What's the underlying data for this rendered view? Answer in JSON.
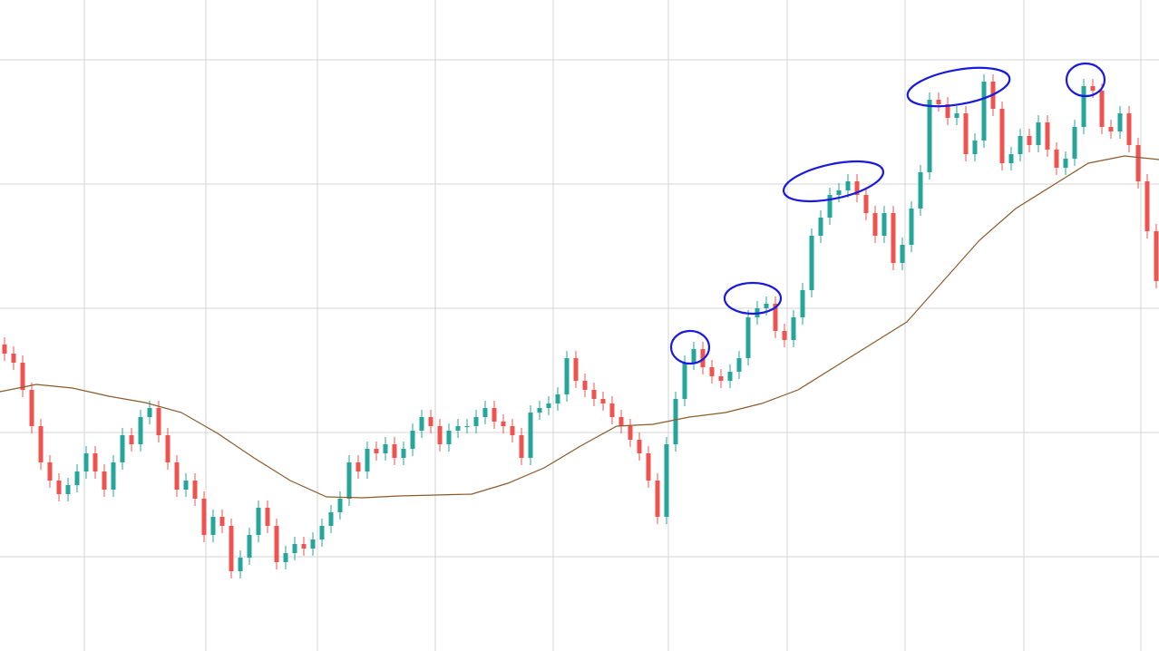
{
  "chart_data": {
    "type": "candlestick",
    "xlim": [
      0,
      127.8
    ],
    "ylim": [
      0,
      718
    ],
    "xticks": [
      9.3,
      22.7,
      35,
      48,
      61,
      73.7,
      86.8,
      99.8,
      112.9,
      125.8
    ],
    "yticks": [
      104,
      241,
      378,
      515,
      652
    ],
    "grid": true,
    "grid_color": "#d6d6d6",
    "series": [
      {
        "type": "candlestick",
        "up_color": "#26a69a",
        "down_color": "#ef5350",
        "open": [
          338,
          328,
          318,
          288,
          248,
          208,
          188,
          173,
          183,
          198,
          218,
          198,
          178,
          208,
          238,
          228,
          258,
          268,
          238,
          208,
          178,
          188,
          168,
          128,
          148,
          138,
          88,
          103,
          128,
          158,
          138,
          98,
          108,
          118,
          113,
          123,
          138,
          153,
          168,
          208,
          198,
          223,
          218,
          228,
          213,
          223,
          243,
          258,
          248,
          228,
          243,
          248,
          248,
          258,
          268,
          253,
          248,
          238,
          213,
          263,
          268,
          273,
          283,
          323,
          298,
          288,
          278,
          273,
          258,
          248,
          233,
          218,
          188,
          148,
          228,
          278,
          318,
          333,
          313,
          303,
          298,
          308,
          323,
          368,
          378,
          383,
          353,
          343,
          368,
          398,
          458,
          478,
          503,
          508,
          518,
          503,
          483,
          458,
          483,
          428,
          448,
          488,
          528,
          608,
          603,
          588,
          593,
          548,
          563,
          628,
          598,
          538,
          548,
          568,
          558,
          583,
          553,
          533,
          543,
          578,
          623,
          618,
          578,
          573,
          593,
          558,
          518,
          463
        ],
        "high": [
          346,
          336,
          326,
          296,
          256,
          216,
          196,
          191,
          206,
          226,
          226,
          206,
          216,
          246,
          246,
          266,
          276,
          276,
          246,
          216,
          196,
          196,
          176,
          156,
          156,
          146,
          111,
          136,
          166,
          166,
          146,
          116,
          126,
          126,
          131,
          146,
          161,
          176,
          216,
          216,
          231,
          231,
          236,
          236,
          231,
          251,
          266,
          266,
          256,
          251,
          256,
          256,
          266,
          276,
          276,
          261,
          256,
          246,
          271,
          276,
          281,
          291,
          331,
          331,
          306,
          296,
          286,
          281,
          266,
          256,
          241,
          226,
          196,
          236,
          286,
          326,
          341,
          341,
          321,
          311,
          316,
          331,
          376,
          386,
          391,
          391,
          361,
          376,
          406,
          466,
          486,
          511,
          516,
          526,
          526,
          511,
          491,
          491,
          491,
          456,
          496,
          536,
          616,
          616,
          611,
          601,
          601,
          571,
          636,
          636,
          606,
          556,
          576,
          576,
          591,
          591,
          561,
          551,
          586,
          631,
          631,
          626,
          586,
          601,
          601,
          566,
          526,
          471
        ],
        "low": [
          320,
          310,
          280,
          240,
          200,
          180,
          165,
          165,
          175,
          190,
          190,
          170,
          170,
          200,
          220,
          220,
          250,
          230,
          200,
          170,
          170,
          160,
          120,
          120,
          130,
          80,
          80,
          95,
          120,
          130,
          90,
          90,
          100,
          105,
          105,
          115,
          130,
          145,
          160,
          190,
          190,
          210,
          210,
          205,
          205,
          215,
          235,
          240,
          220,
          220,
          235,
          240,
          240,
          250,
          245,
          240,
          230,
          205,
          205,
          255,
          260,
          265,
          275,
          290,
          280,
          270,
          265,
          250,
          240,
          225,
          210,
          180,
          140,
          140,
          220,
          270,
          310,
          305,
          295,
          290,
          290,
          300,
          315,
          360,
          370,
          345,
          335,
          335,
          360,
          390,
          450,
          470,
          495,
          500,
          495,
          475,
          450,
          450,
          420,
          420,
          440,
          480,
          520,
          595,
          580,
          580,
          540,
          540,
          555,
          590,
          530,
          530,
          540,
          550,
          550,
          545,
          525,
          525,
          535,
          570,
          610,
          570,
          565,
          565,
          550,
          510,
          455,
          400
        ],
        "close": [
          328,
          318,
          288,
          248,
          208,
          188,
          173,
          183,
          198,
          218,
          198,
          178,
          208,
          238,
          228,
          258,
          268,
          238,
          208,
          178,
          188,
          168,
          128,
          148,
          138,
          88,
          103,
          128,
          158,
          138,
          98,
          108,
          118,
          113,
          123,
          138,
          153,
          168,
          208,
          198,
          223,
          218,
          228,
          213,
          223,
          243,
          258,
          248,
          228,
          243,
          248,
          248,
          258,
          268,
          253,
          248,
          238,
          213,
          263,
          268,
          273,
          283,
          323,
          298,
          288,
          278,
          273,
          258,
          248,
          233,
          218,
          188,
          148,
          228,
          278,
          318,
          333,
          313,
          303,
          298,
          308,
          323,
          368,
          378,
          383,
          353,
          343,
          368,
          398,
          458,
          478,
          503,
          508,
          518,
          503,
          483,
          458,
          483,
          428,
          448,
          488,
          528,
          608,
          603,
          588,
          593,
          548,
          563,
          628,
          598,
          538,
          548,
          568,
          558,
          583,
          553,
          533,
          543,
          578,
          623,
          618,
          578,
          573,
          593,
          558,
          518,
          463,
          408
        ]
      },
      {
        "type": "line",
        "color": "#8b5a2b",
        "x": [
          0,
          4,
          8,
          12,
          16,
          20,
          24,
          28,
          32,
          36,
          40,
          44,
          48,
          52,
          56,
          60,
          64,
          68,
          72,
          76,
          80,
          84,
          88,
          92,
          96,
          100,
          104,
          108,
          112,
          116,
          120,
          124,
          127.8
        ],
        "values": [
          286,
          294,
          290,
          281,
          274,
          263,
          240,
          213,
          188,
          170,
          169,
          171,
          172,
          173,
          185,
          202,
          226,
          248,
          250,
          258,
          263,
          273,
          288,
          313,
          338,
          363,
          408,
          453,
          488,
          513,
          538,
          546,
          542
        ]
      }
    ]
  }
}
